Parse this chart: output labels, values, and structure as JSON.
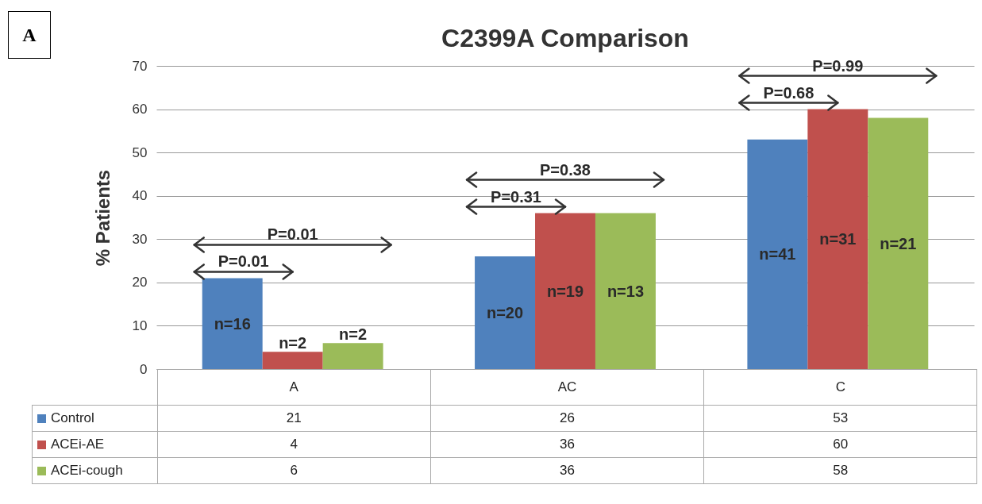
{
  "chart_data": {
    "type": "bar",
    "title": "C2399A Comparison",
    "ylabel": "% Patients",
    "categories": [
      "A",
      "AC",
      "C"
    ],
    "series": [
      {
        "name": "Control",
        "color": "#4f81bd",
        "values": [
          21,
          26,
          53
        ]
      },
      {
        "name": "ACEi-AE",
        "color": "#c0504d",
        "values": [
          4,
          36,
          60
        ]
      },
      {
        "name": "ACEi-cough",
        "color": "#9bbb59",
        "values": [
          6,
          36,
          58
        ]
      }
    ],
    "ylim": [
      0,
      70
    ],
    "yticks": [
      0,
      10,
      20,
      30,
      40,
      50,
      60,
      70
    ],
    "grid": "y",
    "legend": "bottom left",
    "data_labels": true,
    "annotations": [
      "A",
      "n=16",
      "n=2",
      "n=2",
      "P=0.01",
      "P=0.01",
      "n=20",
      "n=19",
      "n=13",
      "P=0.31",
      "P=0.38",
      "n=41",
      "n=31",
      "n=21",
      "P=0.68",
      "P=0.99"
    ]
  }
}
